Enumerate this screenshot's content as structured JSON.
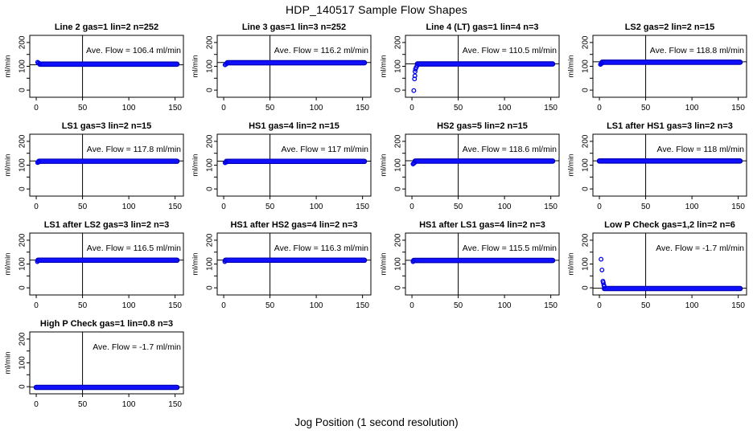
{
  "header": {
    "title": "HDP_140517  Sample Flow Shapes"
  },
  "footer": {
    "xlabel": "Jog Position (1 second resolution)"
  },
  "style": {
    "point_color": "#0000EE",
    "band_fill_color": "#1010FF",
    "band_edge_color": "#0000B0",
    "ref_line_color": "#000000",
    "axis_color": "#000000"
  },
  "chart_data": {
    "type": "scatter",
    "title": "HDP_140517  Sample Flow Shapes",
    "xlabel": "Jog Position (1 second resolution)",
    "ylabel": "ml/min",
    "x_ticks": [
      0,
      50,
      100,
      150
    ],
    "y_ticks_labeled": [
      0,
      100,
      200
    ],
    "y_ticks_all": [
      0,
      50,
      100,
      150,
      200
    ],
    "xlim": [
      -7,
      159
    ],
    "ylim": [
      -30,
      230
    ],
    "vline_x": 50,
    "grid": "off",
    "legend": "none",
    "panels": [
      {
        "title": "Line 2 gas=1 lin=2 n=252",
        "ave_flow": 106.4,
        "ave_label": "Ave. Flow =  106.4  ml/min",
        "band": {
          "x_start": 4,
          "x_end": 152,
          "center": 109,
          "half_width": 7
        },
        "transient_points": [
          [
            1.5,
            117
          ],
          [
            2.5,
            114
          ],
          [
            3.5,
            111
          ]
        ]
      },
      {
        "title": "Line 3 gas=1 lin=3 n=252",
        "ave_flow": 116.2,
        "ave_label": "Ave. Flow =  116.2  ml/min",
        "band": {
          "x_start": 4,
          "x_end": 152,
          "center": 115,
          "half_width": 7
        },
        "transient_points": [
          [
            1.5,
            106
          ],
          [
            2.5,
            109
          ],
          [
            3.5,
            112
          ]
        ]
      },
      {
        "title": "Line 4 (LT) gas=1 lin=4 n=3",
        "ave_flow": 110.5,
        "ave_label": "Ave. Flow =  110.5  ml/min",
        "band": {
          "x_start": 6,
          "x_end": 152,
          "center": 110,
          "half_width": 7
        },
        "transient_points": [
          [
            2,
            -2
          ],
          [
            2.8,
            47
          ],
          [
            3.2,
            60
          ],
          [
            3.4,
            78
          ],
          [
            3.8,
            88
          ],
          [
            4.5,
            95
          ],
          [
            5.5,
            102
          ]
        ]
      },
      {
        "title": "LS2 gas=2 lin=2 n=15",
        "ave_flow": 118.8,
        "ave_label": "Ave. Flow =  118.8  ml/min",
        "band": {
          "x_start": 3,
          "x_end": 152,
          "center": 117,
          "half_width": 7
        },
        "transient_points": [
          [
            1.2,
            108
          ],
          [
            2,
            111
          ],
          [
            2.8,
            113
          ]
        ]
      },
      {
        "title": "LS1 gas=3 lin=2 n=15",
        "ave_flow": 117.8,
        "ave_label": "Ave. Flow =  117.8  ml/min",
        "band": {
          "x_start": 3,
          "x_end": 152,
          "center": 116.5,
          "half_width": 7
        },
        "transient_points": [
          [
            1.5,
            111
          ],
          [
            2.5,
            113
          ]
        ]
      },
      {
        "title": "HS1 gas=4 lin=2 n=15",
        "ave_flow": 117,
        "ave_label": "Ave. Flow =  117  ml/min",
        "band": {
          "x_start": 3,
          "x_end": 152,
          "center": 116,
          "half_width": 7
        },
        "transient_points": [
          [
            1.5,
            110
          ],
          [
            2.5,
            112
          ]
        ]
      },
      {
        "title": "HS2 gas=5 lin=2 n=15",
        "ave_flow": 118.6,
        "ave_label": "Ave. Flow =  118.6  ml/min",
        "band": {
          "x_start": 3.5,
          "x_end": 152,
          "center": 117,
          "half_width": 7
        },
        "transient_points": [
          [
            1.2,
            105
          ],
          [
            2,
            108
          ],
          [
            3,
            111
          ]
        ]
      },
      {
        "title": "LS1 after HS1 gas=3 lin=2 n=3",
        "ave_flow": 118,
        "ave_label": "Ave. Flow =  118  ml/min",
        "band": {
          "x_start": 0,
          "x_end": 152,
          "center": 117.5,
          "half_width": 7
        },
        "transient_points": []
      },
      {
        "title": "LS1 after LS2 gas=3 lin=2 n=3",
        "ave_flow": 116.5,
        "ave_label": "Ave. Flow =  116.5  ml/min",
        "band": {
          "x_start": 2,
          "x_end": 152,
          "center": 116,
          "half_width": 7
        },
        "transient_points": [
          [
            1.2,
            110
          ]
        ]
      },
      {
        "title": "HS1 after HS2 gas=4 lin=2 n=3",
        "ave_flow": 116.3,
        "ave_label": "Ave. Flow =  116.3  ml/min",
        "band": {
          "x_start": 2,
          "x_end": 152,
          "center": 116,
          "half_width": 7
        },
        "transient_points": [
          [
            1.2,
            110
          ]
        ]
      },
      {
        "title": "HS1 after LS1 gas=4 lin=2 n=3",
        "ave_flow": 115.5,
        "ave_label": "Ave. Flow =  115.5  ml/min",
        "band": {
          "x_start": 2,
          "x_end": 152,
          "center": 115,
          "half_width": 7
        },
        "transient_points": [
          [
            1.2,
            110
          ]
        ]
      },
      {
        "title": "Low P Check gas=1,2 lin=2 n=6",
        "ave_flow": -1.7,
        "ave_label": "Ave. Flow =  -1.7  ml/min",
        "band": {
          "x_start": 5.5,
          "x_end": 152,
          "center": -3,
          "half_width": 7
        },
        "transient_points": [
          [
            1.8,
            120
          ],
          [
            2.8,
            75
          ],
          [
            3.8,
            28
          ],
          [
            4.2,
            22
          ],
          [
            4.8,
            12
          ],
          [
            5.2,
            6
          ]
        ]
      },
      {
        "title": "High P Check gas=1 lin=0.8 n=3",
        "ave_flow": -1.7,
        "ave_label": "Ave. Flow =  -1.7  ml/min",
        "band": {
          "x_start": 0,
          "x_end": 152,
          "center": -3,
          "half_width": 7
        },
        "transient_points": []
      }
    ]
  }
}
